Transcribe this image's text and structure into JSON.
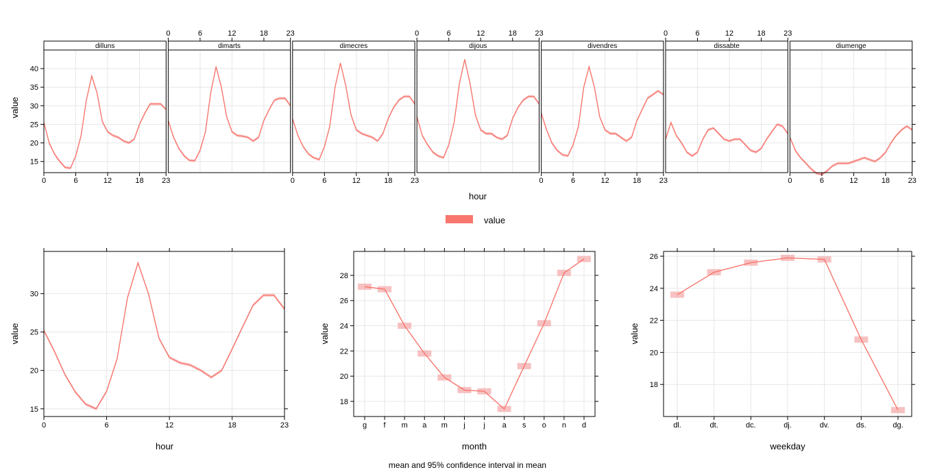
{
  "legend": {
    "label": "value",
    "color": "#f8766d"
  },
  "caption": "mean and 95% confidence interval in mean",
  "chart_data": [
    {
      "type": "line",
      "panel": "hour by weekday",
      "xlabel": "hour",
      "ylabel": "value",
      "xlim": [
        0,
        23
      ],
      "ylim": [
        12,
        45
      ],
      "x_ticks": [
        0,
        6,
        12,
        18,
        23
      ],
      "y_ticks": [
        15,
        20,
        25,
        30,
        35,
        40
      ],
      "color": "#f8766d",
      "band_color": "#f4a6a6",
      "panels": [
        {
          "name": "dilluns",
          "values": [
            25.5,
            20,
            17,
            15,
            13.4,
            13.2,
            16.5,
            22,
            31.5,
            38,
            33.5,
            25.7,
            23,
            22,
            21.5,
            20.5,
            20,
            21,
            25,
            28,
            30.5,
            30.5,
            30.5,
            29
          ]
        },
        {
          "name": "dimarts",
          "values": [
            26,
            21.5,
            18.5,
            16.5,
            15.3,
            15.2,
            18,
            23,
            33.5,
            40.5,
            35,
            27,
            23,
            22,
            21.8,
            21.5,
            20.5,
            21.5,
            26,
            29,
            31.5,
            32,
            32,
            30
          ]
        },
        {
          "name": "dimecres",
          "values": [
            26.5,
            22,
            19,
            17,
            16,
            15.5,
            19,
            24.5,
            35,
            41.5,
            35.5,
            27.5,
            23.5,
            22.5,
            22,
            21.5,
            20.5,
            22.5,
            26.5,
            29.5,
            31.5,
            32.5,
            32.5,
            30.5
          ]
        },
        {
          "name": "dijous",
          "values": [
            27,
            22,
            19.5,
            17.5,
            16.5,
            16,
            19.5,
            25.5,
            36,
            42.5,
            36,
            27.5,
            23.5,
            22.5,
            22.5,
            21.5,
            21,
            22,
            26.5,
            29.5,
            31.5,
            32.5,
            32.5,
            30.5
          ]
        },
        {
          "name": "divendres",
          "values": [
            28,
            23.5,
            20,
            18,
            16.8,
            16.5,
            19.5,
            24.5,
            35,
            40.5,
            35,
            27,
            23.5,
            22.5,
            22.5,
            21.5,
            20.5,
            21.5,
            26,
            29,
            32,
            33,
            34,
            33
          ]
        },
        {
          "name": "dissabte",
          "values": [
            21,
            25.5,
            22,
            20,
            17.5,
            16.5,
            17.5,
            21,
            23.5,
            24,
            22.5,
            21,
            20.5,
            21,
            21,
            19.5,
            18,
            17.5,
            18.5,
            21,
            23,
            25,
            24.5,
            22.5
          ]
        },
        {
          "name": "diumenge",
          "values": [
            21.5,
            18,
            16,
            14.5,
            13,
            11.8,
            11.5,
            12.5,
            13.8,
            14.5,
            14.5,
            14.5,
            15,
            15.5,
            16,
            15.5,
            15,
            16,
            17.5,
            20,
            22,
            23.5,
            24.5,
            23.5
          ]
        }
      ]
    },
    {
      "type": "line",
      "panel": "hour",
      "xlabel": "hour",
      "ylabel": "value",
      "xlim": [
        0,
        23
      ],
      "ylim": [
        14,
        35.5
      ],
      "x_ticks": [
        0,
        6,
        12,
        18,
        23
      ],
      "y_ticks": [
        15,
        20,
        25,
        30
      ],
      "x": [
        0,
        1,
        2,
        3,
        4,
        5,
        6,
        7,
        8,
        9,
        10,
        11,
        12,
        13,
        14,
        15,
        16,
        17,
        18,
        19,
        20,
        21,
        22,
        23
      ],
      "values": [
        25.2,
        22.5,
        19.5,
        17.2,
        15.6,
        15,
        17.3,
        21.5,
        29.5,
        34,
        30,
        24.2,
        21.7,
        21,
        20.7,
        20,
        19.1,
        20,
        22.8,
        25.7,
        28.5,
        29.8,
        29.8,
        28
      ]
    },
    {
      "type": "line",
      "panel": "month",
      "xlabel": "month",
      "ylabel": "value",
      "ylim": [
        16.8,
        29.9
      ],
      "y_ticks": [
        18,
        20,
        22,
        24,
        26,
        28
      ],
      "categories": [
        "g",
        "f",
        "m",
        "a",
        "m",
        "j",
        "j",
        "a",
        "s",
        "o",
        "n",
        "d"
      ],
      "values": [
        27.1,
        26.9,
        24.0,
        21.8,
        19.9,
        18.9,
        18.8,
        17.4,
        20.8,
        24.2,
        28.2,
        29.3
      ]
    },
    {
      "type": "line",
      "panel": "weekday",
      "xlabel": "weekday",
      "ylabel": "value",
      "ylim": [
        16.0,
        26.3
      ],
      "y_ticks": [
        18,
        20,
        22,
        24,
        26
      ],
      "categories": [
        "dl.",
        "dt.",
        "dc.",
        "dj.",
        "dv.",
        "ds.",
        "dg."
      ],
      "values": [
        23.6,
        25.0,
        25.6,
        25.9,
        25.8,
        20.8,
        16.4
      ]
    }
  ]
}
